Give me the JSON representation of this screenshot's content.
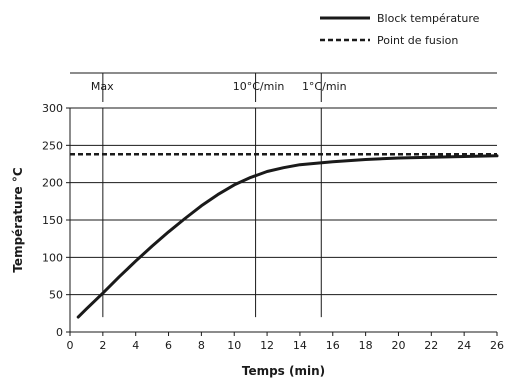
{
  "chart_data": {
    "type": "line",
    "title": "",
    "xlabel": "Temps (min)",
    "ylabel": "Température °C",
    "xlim": [
      0,
      26
    ],
    "ylim": [
      0,
      300
    ],
    "x_ticks": [
      0,
      2,
      4,
      6,
      8,
      10,
      12,
      14,
      16,
      18,
      20,
      22,
      24,
      26
    ],
    "y_ticks": [
      0,
      50,
      100,
      150,
      200,
      250,
      300
    ],
    "grid": "horizontal",
    "legend_position": "top-right",
    "series": [
      {
        "name": "Block température",
        "style": "solid",
        "color": "#1a1a1a",
        "x": [
          0.5,
          1,
          2,
          3,
          4,
          5,
          6,
          7,
          8,
          9,
          10,
          11,
          11.5,
          12,
          13,
          14,
          15,
          16,
          18,
          20,
          22,
          24,
          26
        ],
        "y": [
          20,
          31,
          52,
          74,
          95,
          115,
          134,
          152,
          169,
          184,
          197,
          207,
          211,
          215,
          220,
          224,
          226,
          228,
          231,
          233,
          234,
          235,
          236
        ]
      },
      {
        "name": "Point de fusion",
        "style": "dashed",
        "color": "#1a1a1a",
        "x": [
          0,
          26
        ],
        "y": [
          238,
          238
        ]
      }
    ],
    "markers": [
      {
        "label": "Max",
        "x": 2
      },
      {
        "label": "10°C/min",
        "x": 11.3
      },
      {
        "label": "1°C/min",
        "x": 15.3
      }
    ],
    "marker_lower_y": 20
  }
}
